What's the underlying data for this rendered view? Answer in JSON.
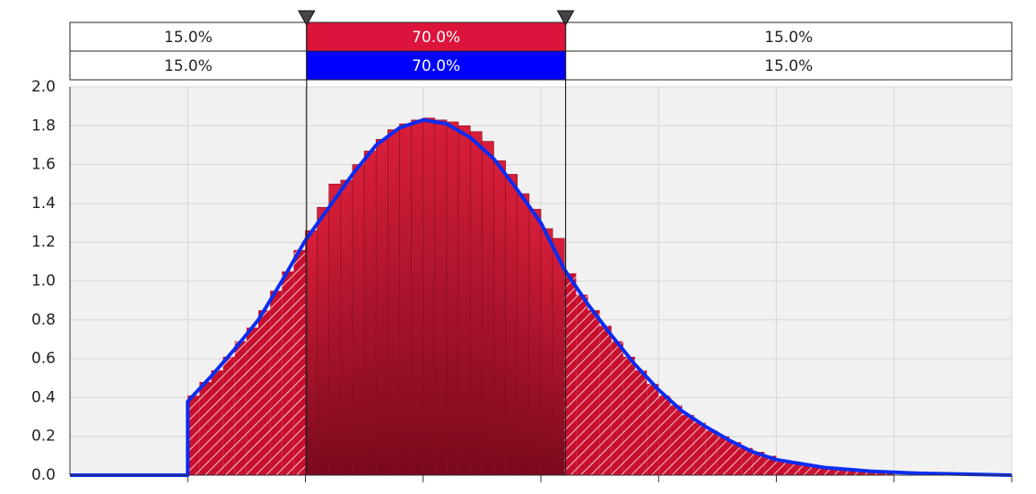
{
  "chart_data": {
    "type": "histogram",
    "bins": [
      1.0,
      1.1,
      1.2,
      1.3,
      1.4,
      1.5,
      1.6,
      1.7,
      1.8,
      1.9,
      2.0,
      2.1,
      2.2,
      2.3,
      2.4,
      2.5,
      2.6,
      2.7,
      2.8,
      2.9,
      3.0,
      3.1,
      3.2,
      3.3,
      3.4,
      3.5,
      3.6,
      3.7,
      3.8,
      3.9,
      4.0,
      4.1,
      4.2,
      4.3,
      4.4,
      4.5,
      4.6,
      4.7,
      4.8,
      4.9,
      5.0,
      5.1,
      5.2,
      5.3,
      5.4,
      5.5,
      5.6,
      5.7,
      5.8,
      5.9,
      6.0,
      6.1,
      6.2,
      6.3,
      6.4,
      6.5,
      6.6,
      6.7,
      6.8,
      6.9,
      7.0
    ],
    "values": [
      0.41,
      0.48,
      0.54,
      0.61,
      0.69,
      0.76,
      0.85,
      0.95,
      1.05,
      1.16,
      1.26,
      1.38,
      1.5,
      1.52,
      1.6,
      1.67,
      1.73,
      1.78,
      1.81,
      1.83,
      1.84,
      1.83,
      1.82,
      1.8,
      1.77,
      1.72,
      1.62,
      1.55,
      1.45,
      1.37,
      1.27,
      1.22,
      1.04,
      0.93,
      0.85,
      0.77,
      0.69,
      0.61,
      0.54,
      0.47,
      0.41,
      0.36,
      0.31,
      0.27,
      0.23,
      0.2,
      0.17,
      0.14,
      0.12,
      0.1,
      0.08,
      0.07,
      0.06,
      0.05,
      0.04,
      0.035,
      0.03,
      0.025,
      0.02,
      0.015
    ],
    "color": "#c8102e",
    "curve": {
      "color": "#0a2cf0",
      "x": [
        0,
        1,
        1,
        1.2,
        1.4,
        1.6,
        1.8,
        2.0,
        2.2,
        2.4,
        2.6,
        2.8,
        3.0,
        3.2,
        3.4,
        3.6,
        3.8,
        4.0,
        4.2,
        4.4,
        4.6,
        4.8,
        5.0,
        5.2,
        5.4,
        5.6,
        5.8,
        6.0,
        6.4,
        6.8,
        7.2,
        7.6,
        8
      ],
      "values": [
        0,
        0,
        0.38,
        0.51,
        0.65,
        0.8,
        1.0,
        1.21,
        1.38,
        1.55,
        1.7,
        1.79,
        1.83,
        1.81,
        1.74,
        1.63,
        1.47,
        1.3,
        1.06,
        0.88,
        0.72,
        0.57,
        0.44,
        0.33,
        0.25,
        0.18,
        0.12,
        0.08,
        0.04,
        0.02,
        0.01,
        0.005,
        0
      ]
    },
    "delimiters": [
      2.01,
      4.21
    ],
    "bands": [
      {
        "color": "#dc143c",
        "values": [
          15.0,
          70.0,
          15.0
        ],
        "value_labels": [
          "15.0%",
          "70.0%",
          "15.0%"
        ]
      },
      {
        "color": "#0000ff",
        "values": [
          15.0,
          70.0,
          15.0
        ],
        "value_labels": [
          "15.0%",
          "70.0%",
          "15.0%"
        ]
      }
    ],
    "xlim": [
      0,
      8
    ],
    "xticks": [
      1,
      2,
      3,
      4,
      5,
      6,
      7,
      8
    ],
    "ylim": [
      0,
      2
    ],
    "yticks": [
      {
        "value": 0,
        "label": "0.0"
      },
      0.2,
      0.4,
      0.6,
      0.8,
      {
        "value": 1,
        "label": "1.0"
      },
      1.2,
      1.4,
      1.6,
      1.8,
      {
        "value": 2,
        "label": "2.0"
      }
    ],
    "grid": true
  }
}
